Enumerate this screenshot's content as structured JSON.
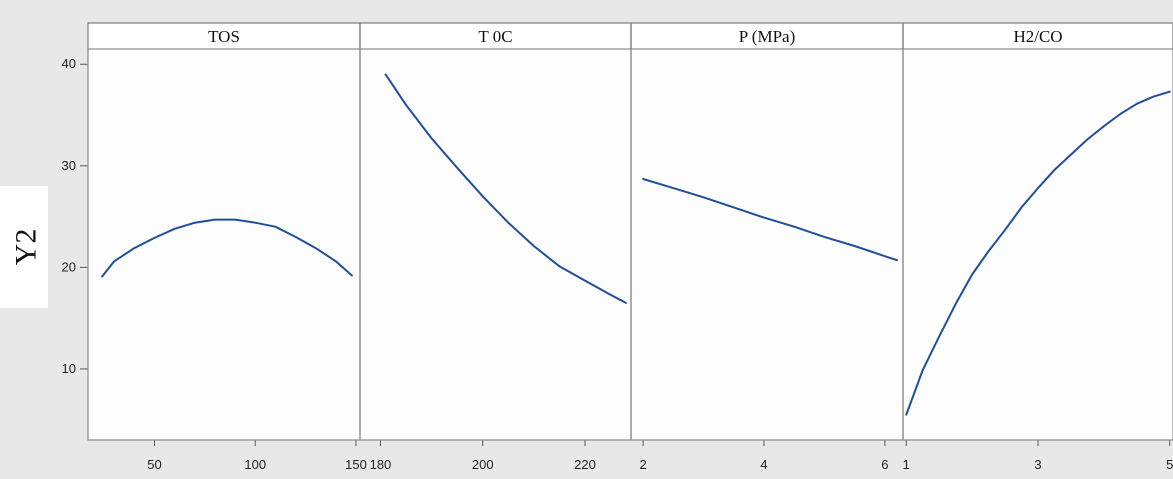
{
  "chart_data": {
    "type": "line",
    "ylabel": "Y2",
    "ylim": [
      3,
      41.5
    ],
    "yticks": [
      10,
      20,
      30,
      40
    ],
    "grid": false,
    "line_color": "#1f4e9c",
    "panels": [
      {
        "name": "TOS",
        "xlim": [
          17,
          152
        ],
        "xticks": [
          50,
          100,
          150
        ],
        "xtick_labels": [
          "50",
          "100",
          "150"
        ],
        "x": [
          24,
          30,
          40,
          50,
          60,
          70,
          80,
          90,
          100,
          110,
          120,
          130,
          140,
          148
        ],
        "y": [
          19.1,
          20.6,
          21.9,
          22.9,
          23.8,
          24.4,
          24.7,
          24.7,
          24.4,
          24.0,
          23.0,
          21.9,
          20.6,
          19.2
        ]
      },
      {
        "name": "T 0C",
        "xlim": [
          176,
          229
        ],
        "xticks": [
          180,
          200,
          220
        ],
        "xtick_labels": [
          "180",
          "200",
          "220"
        ],
        "x": [
          181,
          185,
          190,
          195,
          200,
          205,
          210,
          215,
          220,
          225,
          228
        ],
        "y": [
          39.0,
          36.0,
          32.7,
          29.8,
          27.0,
          24.4,
          22.1,
          20.1,
          18.7,
          17.3,
          16.5
        ]
      },
      {
        "name": "P (MPa)",
        "xlim": [
          1.8,
          6.3
        ],
        "xticks": [
          2,
          4,
          6
        ],
        "xtick_labels": [
          "2",
          "4",
          "6"
        ],
        "x": [
          2.0,
          2.5,
          3.0,
          3.5,
          4.0,
          4.5,
          5.0,
          5.5,
          6.0,
          6.2
        ],
        "y": [
          28.7,
          27.8,
          26.9,
          25.9,
          24.9,
          24.0,
          23.0,
          22.1,
          21.1,
          20.7
        ]
      },
      {
        "name": "H2/CO",
        "xlim": [
          0.95,
          5.05
        ],
        "xticks": [
          1,
          3,
          5
        ],
        "xtick_labels": [
          "1",
          "3",
          "5"
        ],
        "x": [
          1.0,
          1.25,
          1.5,
          1.75,
          2.0,
          2.25,
          2.5,
          2.75,
          3.0,
          3.25,
          3.5,
          3.75,
          4.0,
          4.25,
          4.5,
          4.75,
          5.0
        ],
        "y": [
          5.5,
          9.9,
          13.2,
          16.4,
          19.3,
          21.6,
          23.7,
          25.9,
          27.8,
          29.6,
          31.1,
          32.6,
          33.9,
          35.1,
          36.1,
          36.8,
          37.3
        ]
      }
    ]
  }
}
